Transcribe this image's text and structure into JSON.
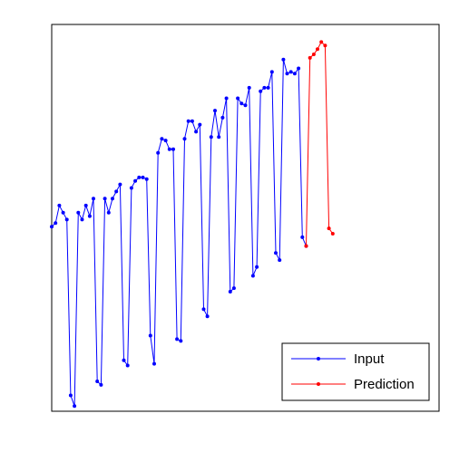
{
  "chart_data": {
    "type": "line",
    "title": "",
    "xlabel": "",
    "ylabel": "",
    "grid": false,
    "legend_position": "bottom-right",
    "x_range": [
      1,
      103
    ],
    "y_range": [
      0,
      11
    ],
    "series": [
      {
        "name": "Input",
        "color": "#0000ff",
        "marker": "point",
        "x": [
          1,
          2,
          3,
          4,
          5,
          6,
          7,
          8,
          9,
          10,
          11,
          12,
          13,
          14,
          15,
          16,
          17,
          18,
          19,
          20,
          21,
          22,
          23,
          24,
          25,
          26,
          27,
          28,
          29,
          30,
          31,
          32,
          33,
          34,
          35,
          36,
          37,
          38,
          39,
          40,
          41,
          42,
          43,
          44,
          45,
          46,
          47,
          48,
          49,
          50,
          51,
          52,
          53,
          54,
          55,
          56,
          57,
          58,
          59,
          60,
          61,
          62,
          63,
          64,
          65,
          66,
          67,
          68,
          69,
          70,
          71,
          72,
          73,
          74,
          75,
          76,
          77,
          78,
          79,
          80,
          81,
          82,
          83,
          84,
          85,
          86,
          87,
          88,
          89,
          90,
          91,
          92,
          93,
          94,
          95,
          96,
          97,
          98
        ],
        "y": [
          5.25,
          5.35,
          5.85,
          5.65,
          5.45,
          0.45,
          0.15,
          5.65,
          5.45,
          5.85,
          5.55,
          6.05,
          0.85,
          0.75,
          6.05,
          5.65,
          6.05,
          6.25,
          6.45,
          1.45,
          1.3,
          6.35,
          6.55,
          6.65,
          6.65,
          6.6,
          2.15,
          1.35,
          7.35,
          7.75,
          7.7,
          7.45,
          7.45,
          2.05,
          2.0,
          7.75,
          8.25,
          8.25,
          7.95,
          8.15,
          2.9,
          2.7,
          7.8,
          8.55,
          7.8,
          8.35,
          8.9,
          3.4,
          3.5,
          8.9,
          8.75,
          8.7,
          9.2,
          3.85,
          4.1,
          9.1,
          9.2,
          9.2,
          9.65,
          4.5,
          4.3,
          10.0,
          9.6,
          9.65,
          9.6,
          9.75,
          4.95,
          4.7,
          null,
          null,
          null,
          null,
          null,
          null,
          null,
          null,
          null,
          null,
          null,
          null,
          null,
          null,
          null,
          null,
          null,
          null,
          null,
          null,
          null,
          null,
          null,
          null,
          null,
          null,
          null,
          null,
          null,
          null
        ]
      },
      {
        "name": "Prediction",
        "color": "#ff0000",
        "marker": "point",
        "x": [
          68,
          69,
          70,
          71,
          72,
          73,
          74,
          75,
          76,
          77
        ],
        "y": [
          4.7,
          10.05,
          10.15,
          10.3,
          10.5,
          10.4,
          5.2,
          5.05,
          null,
          null
        ]
      }
    ]
  }
}
